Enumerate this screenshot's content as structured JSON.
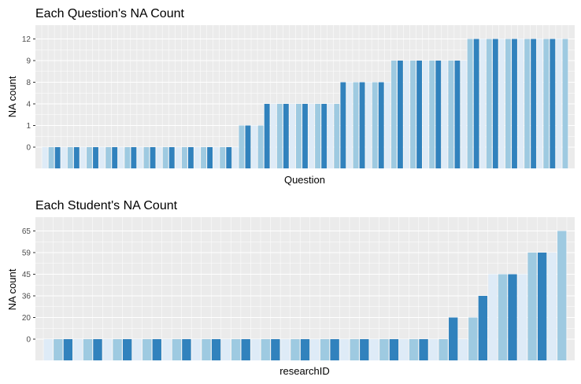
{
  "chart_data": [
    {
      "type": "bar",
      "title": "Each Question's NA Count",
      "xlabel": "Question",
      "ylabel": "NA count",
      "y_scale": "ordinal",
      "y_ticks": [
        "0",
        "1",
        "4",
        "8",
        "9",
        "12"
      ],
      "x_tick_labels": false,
      "grid": true,
      "legend": "none",
      "colors": [
        "#deebf7",
        "#9ecae1",
        "#3182bd"
      ],
      "values": [
        0,
        0,
        0,
        0,
        0,
        0,
        0,
        0,
        0,
        0,
        0,
        0,
        0,
        0,
        0,
        0,
        0,
        0,
        0,
        0,
        0,
        0,
        0,
        0,
        0,
        0,
        0,
        0,
        0,
        0,
        0,
        1,
        1,
        1,
        1,
        4,
        4,
        4,
        4,
        4,
        4,
        4,
        4,
        4,
        4,
        4,
        4,
        8,
        8,
        8,
        8,
        8,
        8,
        8,
        8,
        9,
        9,
        9,
        9,
        9,
        9,
        9,
        9,
        9,
        9,
        9,
        9,
        12,
        12,
        12,
        12,
        12,
        12,
        12,
        12,
        12,
        12,
        12,
        12,
        12,
        12,
        12,
        12
      ]
    },
    {
      "type": "bar",
      "title": "Each Student's NA Count",
      "xlabel": "researchID",
      "ylabel": "NA count",
      "y_scale": "ordinal",
      "y_ticks": [
        "0",
        "20",
        "36",
        "45",
        "59",
        "65"
      ],
      "x_tick_labels": false,
      "grid": true,
      "legend": "none",
      "colors": [
        "#deebf7",
        "#9ecae1",
        "#3182bd"
      ],
      "values": [
        0,
        0,
        0,
        0,
        0,
        0,
        0,
        0,
        0,
        0,
        0,
        0,
        0,
        0,
        0,
        0,
        0,
        0,
        0,
        0,
        0,
        0,
        0,
        0,
        0,
        0,
        0,
        0,
        0,
        0,
        0,
        0,
        0,
        0,
        0,
        0,
        0,
        0,
        0,
        0,
        0,
        20,
        0,
        20,
        36,
        45,
        45,
        45,
        45,
        59,
        59,
        59,
        65
      ]
    }
  ]
}
